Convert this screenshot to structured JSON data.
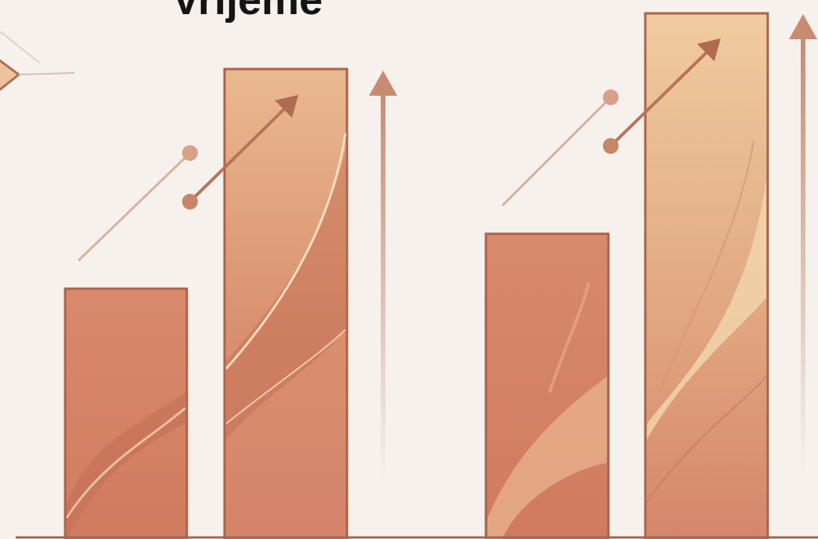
{
  "header": {
    "title": "Vrijeme"
  }
}
